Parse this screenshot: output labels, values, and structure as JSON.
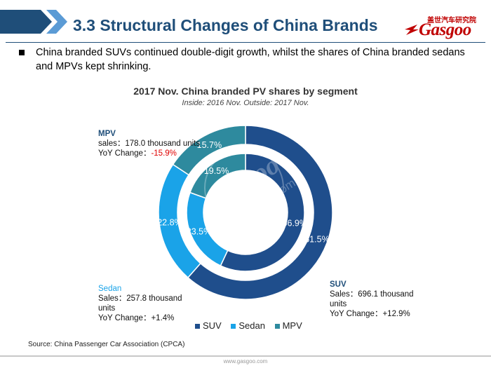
{
  "header": {
    "title": "3.3 Structural Changes of China Brands",
    "logo_cn": "盖世汽车研究院",
    "logo_en": "Gasgoo"
  },
  "bullet": "China branded SUVs continued double-digit growth, whilst the shares of China branded sedans and MPVs kept shrinking.",
  "colors": {
    "SUV": "#1f4e8c",
    "Sedan": "#1aa3e8",
    "MPV": "#2e8a9e",
    "title": "#1f4e79",
    "negative": "#e00000"
  },
  "chart_data": {
    "type": "donut",
    "title": "2017 Nov. China branded PV shares by segment",
    "subtitle": "Inside: 2016 Nov.  Outside: 2017 Nov.",
    "categories": [
      "SUV",
      "Sedan",
      "MPV"
    ],
    "series": [
      {
        "name": "2016 Nov.",
        "ring": "inner",
        "values": [
          56.9,
          23.5,
          19.5
        ],
        "labels": [
          "56.9%",
          "23.5%",
          "19.5%"
        ]
      },
      {
        "name": "2017 Nov.",
        "ring": "outer",
        "values": [
          61.5,
          22.8,
          15.7
        ],
        "labels": [
          "61.5%",
          "22.8%",
          "15.7%"
        ]
      }
    ],
    "legend": [
      "SUV",
      "Sedan",
      "MPV"
    ],
    "legend_position": "bottom"
  },
  "annotations": {
    "mpv": {
      "name": "MPV",
      "sales": "sales：178.0 thousand units",
      "yoy_label": "YoY Change：",
      "yoy_value": "-15.9%"
    },
    "sedan": {
      "name": "Sedan",
      "sales": "Sales：257.8 thousand units",
      "yoy_label": "YoY Change：",
      "yoy_value": "+1.4%"
    },
    "suv": {
      "name": "SUV",
      "sales": "Sales：696.1 thousand units",
      "yoy_label": "YoY Change：",
      "yoy_value": "+12.9%"
    }
  },
  "watermark": {
    "brand": "Gasgoo",
    "url": "auto.gasgoo.com"
  },
  "source": "Source: China Passenger Car Association (CPCA)",
  "footer": "www.gasgoo.com"
}
